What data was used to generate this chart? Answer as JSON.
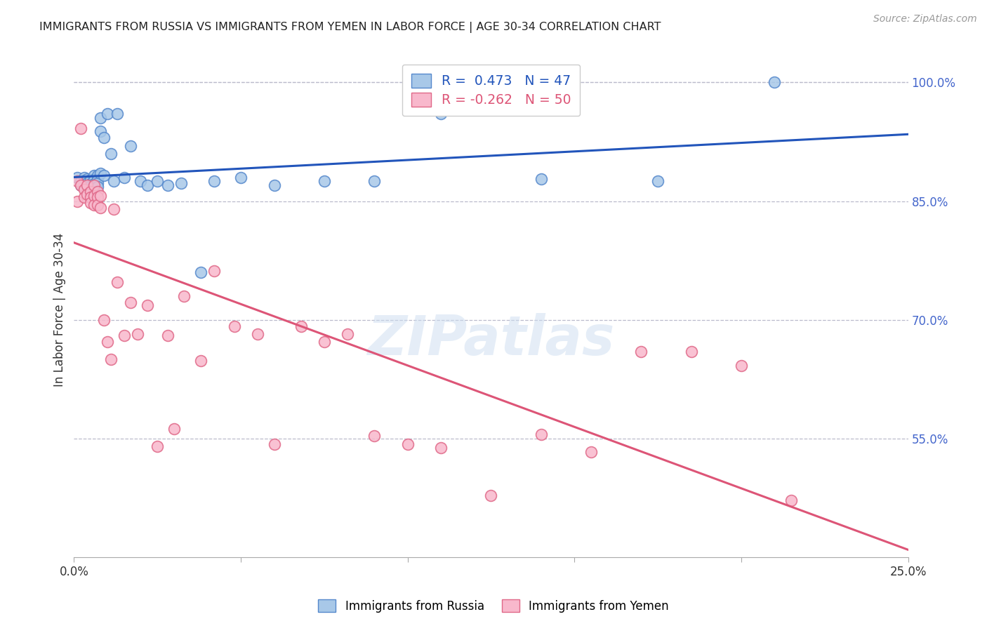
{
  "title": "IMMIGRANTS FROM RUSSIA VS IMMIGRANTS FROM YEMEN IN LABOR FORCE | AGE 30-34 CORRELATION CHART",
  "source": "Source: ZipAtlas.com",
  "ylabel": "In Labor Force | Age 30-34",
  "xlim": [
    0.0,
    0.25
  ],
  "ylim": [
    0.4,
    1.025
  ],
  "xticks": [
    0.0,
    0.05,
    0.1,
    0.15,
    0.2,
    0.25
  ],
  "xtick_labels": [
    "0.0%",
    "",
    "",
    "",
    "",
    "25.0%"
  ],
  "yticks_right": [
    0.55,
    0.7,
    0.85,
    1.0
  ],
  "ytick_labels_right": [
    "55.0%",
    "70.0%",
    "85.0%",
    "100.0%"
  ],
  "russia_R": 0.473,
  "russia_N": 47,
  "yemen_R": -0.262,
  "yemen_N": 50,
  "russia_color": "#a8c8e8",
  "russia_edge": "#5588cc",
  "russia_line_color": "#2255bb",
  "yemen_color": "#f8b8cc",
  "yemen_edge": "#e06888",
  "yemen_line_color": "#dd5577",
  "watermark": "ZIPatlas",
  "background_color": "#ffffff",
  "grid_color": "#bbbbcc",
  "right_axis_color": "#4466cc",
  "russia_x": [
    0.001,
    0.002,
    0.002,
    0.003,
    0.003,
    0.003,
    0.004,
    0.004,
    0.004,
    0.005,
    0.005,
    0.005,
    0.005,
    0.006,
    0.006,
    0.006,
    0.006,
    0.007,
    0.007,
    0.007,
    0.007,
    0.008,
    0.008,
    0.008,
    0.009,
    0.009,
    0.01,
    0.011,
    0.012,
    0.013,
    0.015,
    0.017,
    0.02,
    0.022,
    0.025,
    0.028,
    0.032,
    0.038,
    0.042,
    0.05,
    0.06,
    0.075,
    0.09,
    0.11,
    0.14,
    0.175,
    0.21
  ],
  "russia_y": [
    0.88,
    0.875,
    0.87,
    0.88,
    0.875,
    0.87,
    0.878,
    0.873,
    0.868,
    0.877,
    0.872,
    0.869,
    0.865,
    0.882,
    0.877,
    0.872,
    0.868,
    0.882,
    0.877,
    0.873,
    0.868,
    0.885,
    0.938,
    0.955,
    0.882,
    0.93,
    0.96,
    0.91,
    0.875,
    0.96,
    0.88,
    0.92,
    0.875,
    0.87,
    0.875,
    0.87,
    0.873,
    0.76,
    0.875,
    0.88,
    0.87,
    0.875,
    0.875,
    0.96,
    0.878,
    0.875,
    1.0
  ],
  "yemen_x": [
    0.001,
    0.001,
    0.002,
    0.002,
    0.003,
    0.003,
    0.004,
    0.004,
    0.005,
    0.005,
    0.005,
    0.006,
    0.006,
    0.006,
    0.007,
    0.007,
    0.007,
    0.008,
    0.008,
    0.009,
    0.01,
    0.011,
    0.012,
    0.013,
    0.015,
    0.017,
    0.019,
    0.022,
    0.025,
    0.028,
    0.03,
    0.033,
    0.038,
    0.042,
    0.048,
    0.055,
    0.06,
    0.068,
    0.075,
    0.082,
    0.09,
    0.1,
    0.11,
    0.125,
    0.14,
    0.155,
    0.17,
    0.185,
    0.2,
    0.215
  ],
  "yemen_y": [
    0.875,
    0.85,
    0.942,
    0.87,
    0.865,
    0.855,
    0.87,
    0.858,
    0.862,
    0.855,
    0.848,
    0.87,
    0.857,
    0.845,
    0.862,
    0.855,
    0.845,
    0.857,
    0.842,
    0.7,
    0.672,
    0.65,
    0.84,
    0.748,
    0.68,
    0.722,
    0.682,
    0.718,
    0.54,
    0.68,
    0.562,
    0.73,
    0.648,
    0.762,
    0.692,
    0.682,
    0.543,
    0.692,
    0.672,
    0.682,
    0.553,
    0.543,
    0.538,
    0.478,
    0.555,
    0.533,
    0.66,
    0.66,
    0.642,
    0.472
  ]
}
